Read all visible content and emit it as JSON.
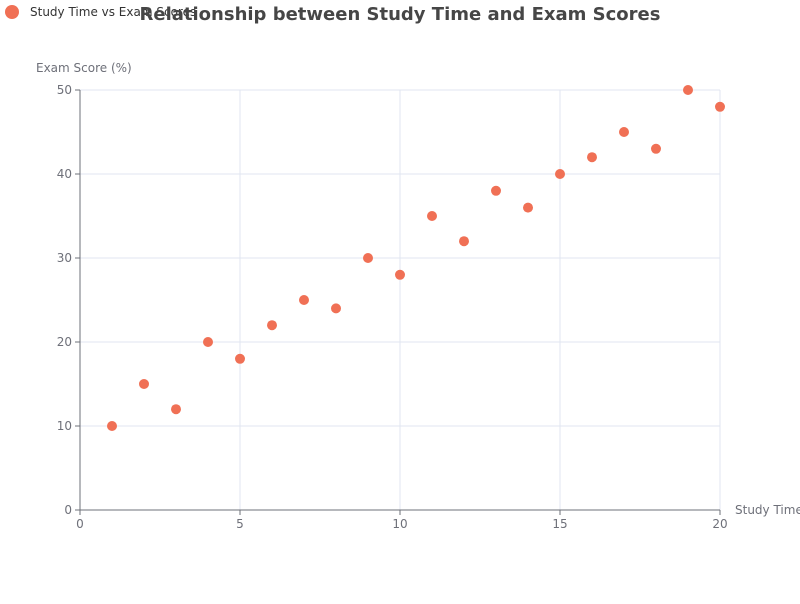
{
  "chart_data": {
    "type": "scatter",
    "title": "Relationship between Study Time and Exam Scores",
    "xlabel": "Study Time",
    "ylabel": "Exam Score (%)",
    "xlim": [
      0,
      20
    ],
    "ylim": [
      0,
      50
    ],
    "xticks": [
      0,
      5,
      10,
      15,
      20
    ],
    "yticks": [
      0,
      10,
      20,
      30,
      40,
      50
    ],
    "grid": true,
    "legend_position": "top-left",
    "series": [
      {
        "name": "Study Time vs Exam Scores",
        "color": "#f07055",
        "x": [
          1,
          2,
          3,
          4,
          5,
          6,
          7,
          8,
          9,
          10,
          11,
          12,
          13,
          14,
          15,
          16,
          17,
          18,
          19,
          20
        ],
        "y": [
          10,
          15,
          12,
          20,
          18,
          22,
          25,
          24,
          30,
          28,
          35,
          32,
          38,
          36,
          40,
          42,
          45,
          43,
          50,
          48
        ]
      }
    ]
  }
}
